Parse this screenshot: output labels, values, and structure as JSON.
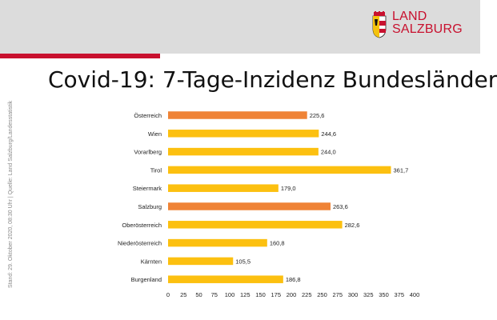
{
  "header": {
    "logo_line1": "LAND",
    "logo_line2": "SALZBURG",
    "brand_color": "#c8102e"
  },
  "slide": {
    "title": "Covid-19: 7-Tage-Inzidenz Bundesländer",
    "source_note": "Stand: 29. Oktober 2020, 08:30 Uhr | Quelle: Land Salzburg/Landesstatistik"
  },
  "chart_data": {
    "type": "bar",
    "orientation": "horizontal",
    "title": "",
    "xlabel": "",
    "ylabel": "",
    "categories": [
      "Österreich",
      "Wien",
      "Vorarlberg",
      "Tirol",
      "Steiermark",
      "Salzburg",
      "Oberösterreich",
      "Niederösterreich",
      "Kärnten",
      "Burgenland"
    ],
    "values": [
      225.6,
      244.6,
      244.0,
      361.7,
      179.0,
      263.6,
      282.6,
      160.8,
      105.5,
      186.8
    ],
    "value_labels": [
      "225,6",
      "244,6",
      "244,0",
      "361,7",
      "179,0",
      "263,6",
      "282,6",
      "160,8",
      "105,5",
      "186,8"
    ],
    "highlight": [
      true,
      false,
      false,
      false,
      false,
      true,
      false,
      false,
      false,
      false
    ],
    "colors": {
      "default": "#fcc010",
      "highlight": "#ef8336"
    },
    "xlim": [
      0,
      400
    ],
    "xticks": [
      0,
      25,
      50,
      75,
      100,
      125,
      150,
      175,
      200,
      225,
      250,
      275,
      300,
      325,
      350,
      375,
      400
    ],
    "grid": false,
    "legend": "none"
  }
}
